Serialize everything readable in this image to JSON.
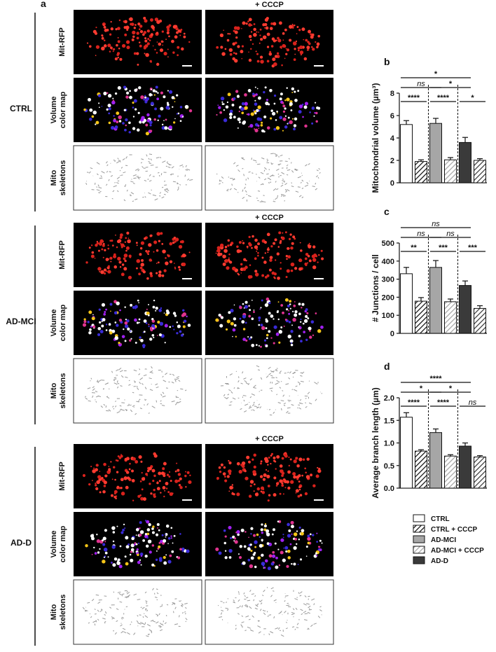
{
  "panel_a": {
    "label": "a",
    "groups": [
      {
        "name": "CTRL",
        "treatment": "+ CCCP",
        "rows": [
          [
            "Mit-RFP"
          ],
          [
            "Volume",
            "color map"
          ],
          [
            "Mito",
            "skeletons"
          ]
        ]
      },
      {
        "name": "AD-MCI",
        "treatment": "+ CCCP",
        "rows": [
          [
            "Mit-RFP"
          ],
          [
            "Volume",
            "color map"
          ],
          [
            "Mito",
            "skeletons"
          ]
        ]
      },
      {
        "name": "AD-D",
        "treatment": "+ CCCP",
        "rows": [
          [
            "Mit-RFP"
          ],
          [
            "Volume",
            "color map"
          ],
          [
            "Mito",
            "skeletons"
          ]
        ]
      }
    ]
  },
  "legend": {
    "names": [
      "CTRL",
      "CTRL + CCCP",
      "AD-MCI",
      "AD-MCI + CCCP",
      "AD-D",
      null
    ],
    "colors": [
      "#ffffff",
      "#ffffff",
      "#a6a6a6",
      "#a6a6a6",
      "#3a3a3a",
      "#3a3a3a"
    ],
    "hatched": [
      false,
      true,
      false,
      true,
      false,
      true
    ]
  },
  "chart_data": [
    {
      "type": "bar",
      "label": "b",
      "ylabel": "Mitochondrial volume (µm³)",
      "values": [
        5.2,
        1.9,
        5.3,
        2.05,
        3.6,
        2.0
      ],
      "errors": [
        0.35,
        0.15,
        0.45,
        0.2,
        0.45,
        0.15
      ],
      "ylim": [
        0,
        8
      ],
      "yticks": [
        0,
        2,
        4,
        6,
        8
      ],
      "annotations": [
        {
          "label": "*",
          "from": 0,
          "to": 4,
          "level": 2
        },
        {
          "label": "ns",
          "from": 0,
          "to": 2,
          "level": 1
        },
        {
          "label": "*",
          "from": 2,
          "to": 4,
          "level": 1
        },
        {
          "label": "****",
          "from": 0,
          "to": 1,
          "level": 0
        },
        {
          "label": "****",
          "from": 2,
          "to": 3,
          "level": 0
        },
        {
          "label": "*",
          "from": 4,
          "to": 5,
          "level": 0
        }
      ]
    },
    {
      "type": "bar",
      "label": "c",
      "ylabel": "# Junctions / cell",
      "values": [
        330,
        178,
        365,
        175,
        265,
        138
      ],
      "errors": [
        35,
        20,
        38,
        15,
        25,
        15
      ],
      "ylim": [
        0,
        500
      ],
      "yticks": [
        0,
        100,
        200,
        300,
        400,
        500
      ],
      "annotations": [
        {
          "label": "ns",
          "from": 0,
          "to": 4,
          "level": 2
        },
        {
          "label": "ns",
          "from": 0,
          "to": 2,
          "level": 1
        },
        {
          "label": "ns",
          "from": 2,
          "to": 4,
          "level": 1
        },
        {
          "label": "**",
          "from": 0,
          "to": 1,
          "level": 0
        },
        {
          "label": "***",
          "from": 2,
          "to": 3,
          "level": 0
        },
        {
          "label": "***",
          "from": 4,
          "to": 5,
          "level": 0
        }
      ]
    },
    {
      "type": "bar",
      "label": "d",
      "ylabel": "Average branch length (µm)",
      "values": [
        1.57,
        0.82,
        1.23,
        0.71,
        0.93,
        0.69
      ],
      "errors": [
        0.1,
        0.03,
        0.08,
        0.03,
        0.07,
        0.03
      ],
      "ylim": [
        0,
        2
      ],
      "yticks": [
        {
          "value": 0,
          "label": "0.0"
        },
        0.5,
        {
          "value": 1,
          "label": "1.0"
        },
        1.5,
        {
          "value": 2,
          "label": "2.0"
        }
      ],
      "annotations": [
        {
          "label": "****",
          "from": 0,
          "to": 4,
          "level": 2
        },
        {
          "label": "*",
          "from": 0,
          "to": 2,
          "level": 1
        },
        {
          "label": "*",
          "from": 2,
          "to": 4,
          "level": 1
        },
        {
          "label": "****",
          "from": 0,
          "to": 1,
          "level": 0
        },
        {
          "label": "****",
          "from": 2,
          "to": 3,
          "level": 0
        },
        {
          "label": "ns",
          "from": 4,
          "to": 5,
          "level": 0
        }
      ]
    }
  ]
}
